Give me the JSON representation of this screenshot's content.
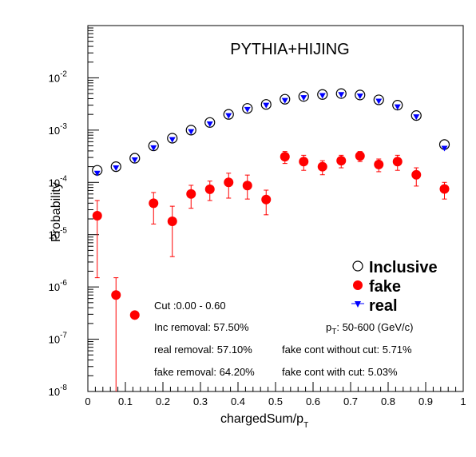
{
  "chart_data": {
    "type": "scatter",
    "title": "PYTHIA+HIJING",
    "xlabel": "chargedSum/p",
    "xlabel_sub": "T",
    "ylabel": "Probability",
    "xlim": [
      0,
      1
    ],
    "ylim": [
      1e-08,
      0.1
    ],
    "yscale": "log",
    "grid": false,
    "legend_position": "bottom-right",
    "x_ticks": [
      0,
      0.1,
      0.2,
      0.3,
      0.4,
      0.5,
      0.6,
      0.7,
      0.8,
      0.9,
      1
    ],
    "x_tick_labels": [
      "0",
      "0.1",
      "0.2",
      "0.3",
      "0.4",
      "0.5",
      "0.6",
      "0.7",
      "0.8",
      "0.9",
      "1"
    ],
    "y_ticks": [
      {
        "base": "10",
        "exp": "-8"
      },
      {
        "base": "10",
        "exp": "-7"
      },
      {
        "base": "10",
        "exp": "-6"
      },
      {
        "base": "10",
        "exp": "-5"
      },
      {
        "base": "10",
        "exp": "-4"
      },
      {
        "base": "10",
        "exp": "-3"
      },
      {
        "base": "10",
        "exp": "-2"
      }
    ],
    "series": [
      {
        "name": "Inclusive",
        "marker": "open-circle",
        "color": "#000000",
        "x": [
          0.025,
          0.075,
          0.125,
          0.175,
          0.225,
          0.275,
          0.325,
          0.375,
          0.425,
          0.475,
          0.525,
          0.575,
          0.625,
          0.675,
          0.725,
          0.775,
          0.825,
          0.875,
          0.95
        ],
        "y": [
          0.00017,
          0.0002,
          0.00029,
          0.0005,
          0.0007,
          0.001,
          0.0014,
          0.002,
          0.0026,
          0.0031,
          0.0039,
          0.0044,
          0.0048,
          0.005,
          0.0047,
          0.0038,
          0.003,
          0.0019,
          0.00053
        ]
      },
      {
        "name": "fake",
        "marker": "filled-circle",
        "color": "#ff0000",
        "x": [
          0.025,
          0.075,
          0.125,
          0.175,
          0.225,
          0.275,
          0.325,
          0.375,
          0.425,
          0.475,
          0.525,
          0.575,
          0.625,
          0.675,
          0.725,
          0.775,
          0.825,
          0.875,
          0.95
        ],
        "y": [
          2.3e-05,
          7e-07,
          2.9e-07,
          4e-05,
          1.8e-05,
          6e-05,
          7.4e-05,
          0.0001,
          8.7e-05,
          4.7e-05,
          0.00031,
          0.00025,
          0.0002,
          0.00026,
          0.00032,
          0.00022,
          0.00025,
          0.00014,
          7.5e-05
        ],
        "y_low": [
          1.5e-06,
          1e-08,
          null,
          1.6e-05,
          3.8e-06,
          3.2e-05,
          4.5e-05,
          5e-05,
          4.8e-05,
          2.4e-05,
          0.00023,
          0.00017,
          0.00014,
          0.00019,
          0.00025,
          0.00016,
          0.00017,
          8.5e-05,
          4.8e-05
        ],
        "y_high": [
          4.5e-05,
          1.5e-06,
          null,
          6.4e-05,
          3.5e-05,
          8.8e-05,
          0.000106,
          0.00015,
          0.000138,
          7.1e-05,
          0.00039,
          0.00033,
          0.00026,
          0.00033,
          0.00039,
          0.00028,
          0.00033,
          0.00019,
          0.0001
        ]
      },
      {
        "name": "real",
        "marker": "filled-triangle-down",
        "color": "#0000ff",
        "x": [
          0.025,
          0.075,
          0.125,
          0.175,
          0.225,
          0.275,
          0.325,
          0.375,
          0.425,
          0.475,
          0.525,
          0.575,
          0.625,
          0.675,
          0.725,
          0.775,
          0.825,
          0.875,
          0.95
        ],
        "y": [
          0.00015,
          0.00019,
          0.00027,
          0.00046,
          0.00066,
          0.00094,
          0.00132,
          0.0019,
          0.0025,
          0.003,
          0.0037,
          0.0042,
          0.0046,
          0.0048,
          0.0045,
          0.0036,
          0.0028,
          0.0018,
          0.00045
        ]
      }
    ],
    "annotations": {
      "cut": "Cut :0.00 - 0.60",
      "inc_removal": "Inc removal: 57.50%",
      "real_removal": "real removal: 57.10%",
      "fake_removal": "fake removal: 64.20%",
      "pt_prefix": "p",
      "pt_sub": "T",
      "pt_range": ": 50-600 (GeV/c)",
      "fake_cont_without": "fake cont without cut: 5.71%",
      "fake_cont_with": "fake cont with cut: 5.03%"
    }
  }
}
